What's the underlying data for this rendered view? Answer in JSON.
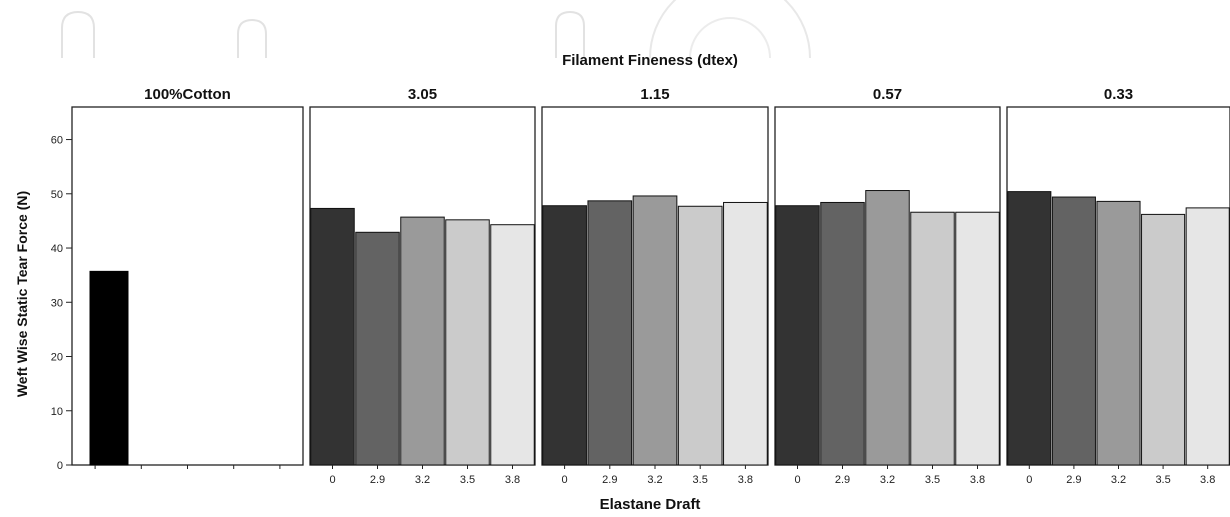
{
  "chart_data": {
    "type": "bar",
    "title": "Filament Fineness (dtex)",
    "xlabel": "Elastane Draft",
    "ylabel": "Weft Wise Static Tear Force (N)",
    "ylim": [
      0,
      66
    ],
    "yticks": [
      "0",
      "10",
      "20",
      "30",
      "40",
      "50",
      "60"
    ],
    "categories": [
      "0",
      "2.9",
      "3.2",
      "3.5",
      "3.8"
    ],
    "bar_colors": [
      "#333333",
      "#636363",
      "#9a9a9a",
      "#cbcbcb",
      "#e6e6e6"
    ],
    "control_color": "#000000",
    "panels": [
      {
        "name": "100%Cotton",
        "values": [
          35.7
        ]
      },
      {
        "name": "3.05",
        "values": [
          47.3,
          42.9,
          45.7,
          45.2,
          44.3
        ]
      },
      {
        "name": "1.15",
        "values": [
          47.8,
          48.7,
          49.6,
          47.7,
          48.4
        ]
      },
      {
        "name": "0.57",
        "values": [
          47.8,
          48.4,
          50.6,
          46.6,
          46.6
        ]
      },
      {
        "name": "0.33",
        "values": [
          50.4,
          49.4,
          48.6,
          46.2,
          47.4
        ]
      }
    ]
  }
}
